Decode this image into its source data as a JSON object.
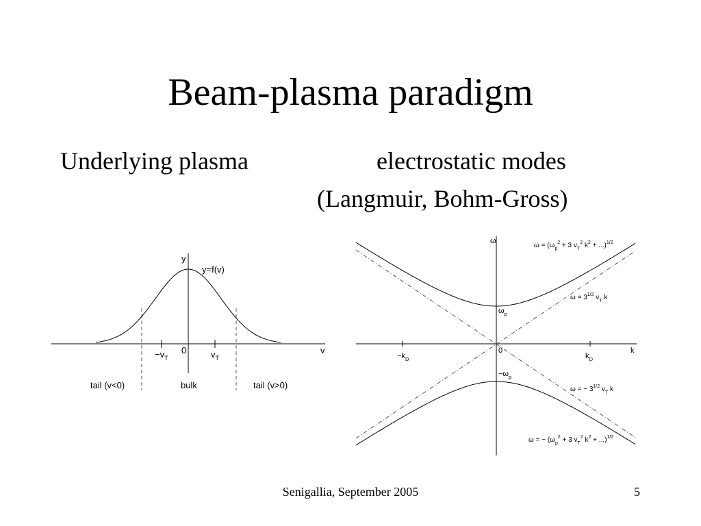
{
  "title": "Beam-plasma paradigm",
  "left_heading": "Underlying plasma",
  "right_heading": [
    "electrostatic modes",
    "(Langmuir, Bohm-Gross)"
  ],
  "left_diagram": {
    "labels": {
      "y_axis": [
        {
          "text": "y"
        }
      ],
      "curve": [
        {
          "text": "y=f(v)"
        }
      ],
      "minus_vt": [
        {
          "text": "−v"
        },
        {
          "sub": "T"
        }
      ],
      "zero": [
        {
          "text": "0"
        }
      ],
      "vt": [
        {
          "text": "v"
        },
        {
          "sub": "T"
        }
      ],
      "v_axis": [
        {
          "text": "v"
        }
      ],
      "tail_neg": [
        {
          "text": "tail (v<0)"
        }
      ],
      "bulk": [
        {
          "text": "bulk"
        }
      ],
      "tail_pos": [
        {
          "text": "tail (v>0)"
        }
      ]
    }
  },
  "right_diagram": {
    "labels": {
      "omega_axis": [
        {
          "text": "ω"
        }
      ],
      "upper_formula": [
        {
          "text": "ω = (ω"
        },
        {
          "sub": "p"
        },
        {
          "sup": "2"
        },
        {
          "text": " + 3 v"
        },
        {
          "sub": "T"
        },
        {
          "sup": "2"
        },
        {
          "text": " k"
        },
        {
          "sup": "2"
        },
        {
          "text": " + ...)"
        },
        {
          "sup": "1/2"
        }
      ],
      "upper_asymptote": [
        {
          "text": "ω = 3"
        },
        {
          "sup": "1/2"
        },
        {
          "text": " v"
        },
        {
          "sub": "T"
        },
        {
          "text": " k"
        }
      ],
      "omega_p": [
        {
          "text": "ω"
        },
        {
          "sub": "p"
        }
      ],
      "minus_kd": [
        {
          "text": "−k"
        },
        {
          "sub": "D"
        }
      ],
      "zero": [
        {
          "text": "0"
        }
      ],
      "kd": [
        {
          "text": "k"
        },
        {
          "sub": "D"
        }
      ],
      "k_axis": [
        {
          "text": "k"
        }
      ],
      "minus_omega_p": [
        {
          "text": "−ω"
        },
        {
          "sub": "p"
        }
      ],
      "lower_asymptote": [
        {
          "text": "ω = − 3"
        },
        {
          "sup": "1/2"
        },
        {
          "text": " v"
        },
        {
          "sub": "T"
        },
        {
          "text": " k"
        }
      ],
      "lower_formula": [
        {
          "text": "ω = − (ω"
        },
        {
          "sub": "p"
        },
        {
          "sup": "2"
        },
        {
          "text": " + 3 v"
        },
        {
          "sub": "T"
        },
        {
          "sup": "2"
        },
        {
          "text": " k"
        },
        {
          "sup": "2"
        },
        {
          "text": " + ...)"
        },
        {
          "sup": "1/2"
        }
      ]
    }
  },
  "footer": {
    "text": "Senigallia, September 2005",
    "page": "5"
  }
}
